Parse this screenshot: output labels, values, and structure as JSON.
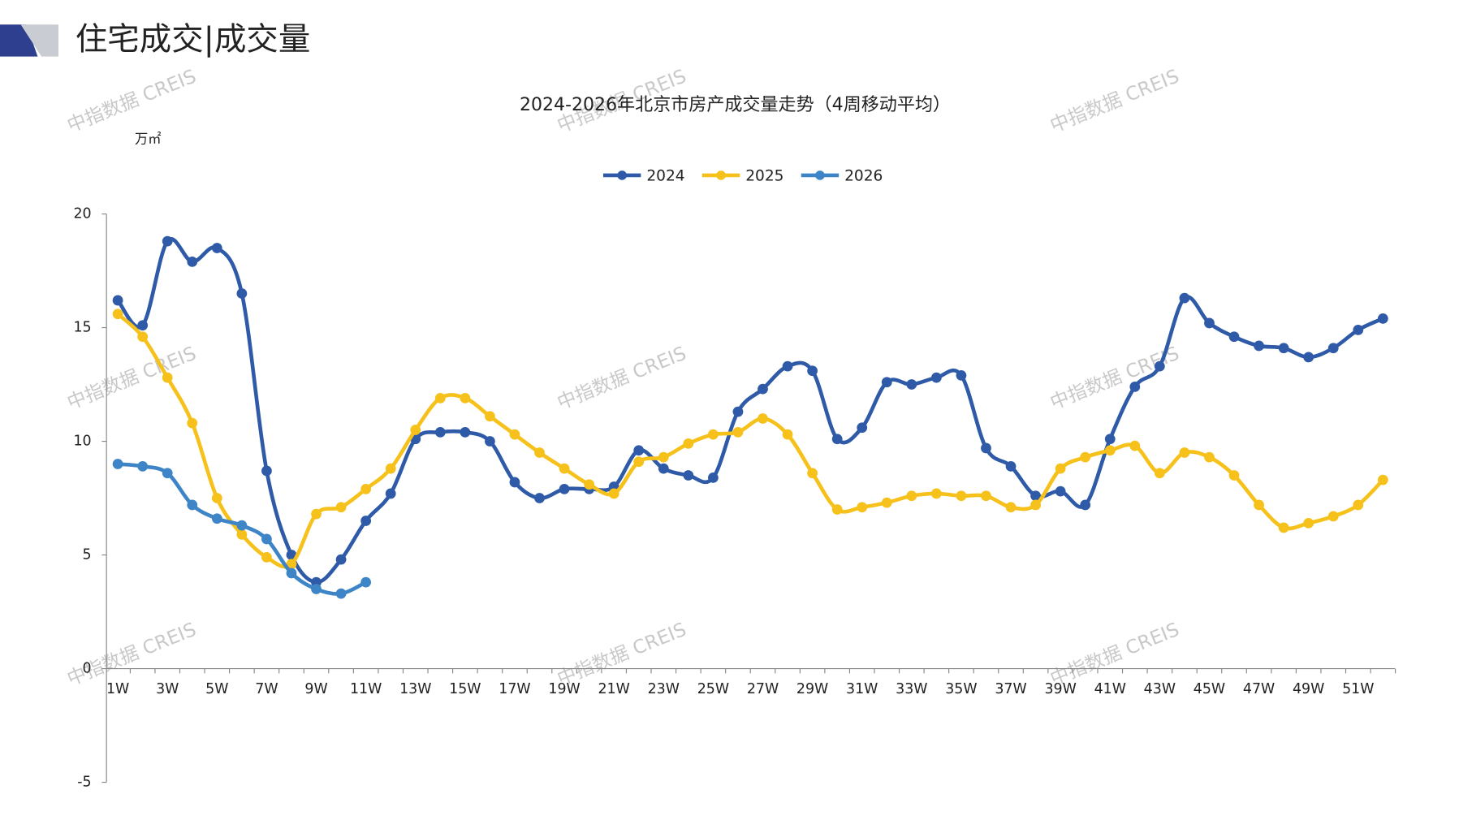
{
  "header": {
    "title": "住宅成交|成交量"
  },
  "watermark": "中指数据 CREIS",
  "chart_data": {
    "type": "line",
    "title": "2024-2026年北京市房产成交量走势（4周移动平均）",
    "y_unit": "万㎡",
    "categories": [
      "1W",
      null,
      "3W",
      null,
      "5W",
      null,
      "7W",
      null,
      "9W",
      null,
      "11W",
      null,
      "13W",
      null,
      "15W",
      null,
      "17W",
      null,
      "19W",
      null,
      "21W",
      null,
      "23W",
      null,
      "25W",
      null,
      "27W",
      null,
      "29W",
      null,
      "31W",
      null,
      "33W",
      null,
      "35W",
      null,
      "37W",
      null,
      "39W",
      null,
      "41W",
      null,
      "43W",
      null,
      "45W",
      null,
      "47W",
      null,
      "49W",
      null,
      "51W",
      null
    ],
    "series": [
      {
        "name": "2024",
        "color": "#2e5aa8",
        "values": [
          16.2,
          15.1,
          18.8,
          17.9,
          18.5,
          16.5,
          8.7,
          5.0,
          3.8,
          4.8,
          6.5,
          7.7,
          10.1,
          10.4,
          10.4,
          10.0,
          8.2,
          7.5,
          7.9,
          7.9,
          8.0,
          9.6,
          8.8,
          8.5,
          8.4,
          11.3,
          12.3,
          13.3,
          13.1,
          10.1,
          10.6,
          12.6,
          12.5,
          12.8,
          12.9,
          9.7,
          8.9,
          7.6,
          7.8,
          7.2,
          10.1,
          12.4,
          13.3,
          16.3,
          15.2,
          14.6,
          14.2,
          14.1,
          13.7,
          14.1,
          14.9,
          15.4
        ]
      },
      {
        "name": "2025",
        "color": "#f5c11a",
        "values": [
          15.6,
          14.6,
          12.8,
          10.8,
          7.5,
          5.9,
          4.9,
          4.6,
          6.8,
          7.1,
          7.9,
          8.8,
          10.5,
          11.9,
          11.9,
          11.1,
          10.3,
          9.5,
          8.8,
          8.1,
          7.7,
          9.1,
          9.3,
          9.9,
          10.3,
          10.4,
          11.0,
          10.3,
          8.6,
          7.0,
          7.1,
          7.3,
          7.6,
          7.7,
          7.6,
          7.6,
          7.1,
          7.2,
          8.8,
          9.3,
          9.6,
          9.8,
          8.6,
          9.5,
          9.3,
          8.5,
          7.2,
          6.2,
          6.4,
          6.7,
          7.2,
          8.3
        ]
      },
      {
        "name": "2026",
        "color": "#3d85c6",
        "values": [
          9.0,
          8.9,
          8.6,
          7.2,
          6.6,
          6.3,
          5.7,
          4.2,
          3.5,
          3.3,
          3.8,
          null,
          null,
          null,
          null,
          null,
          null,
          null,
          null,
          null,
          null,
          null,
          null,
          null,
          null,
          null,
          null,
          null,
          null,
          null,
          null,
          null,
          null,
          null,
          null,
          null,
          null,
          null,
          null,
          null,
          null,
          null,
          null,
          null,
          null,
          null,
          null,
          null,
          null,
          null,
          null,
          null
        ]
      }
    ],
    "ylim": [
      -5,
      20
    ],
    "yticks": [
      -5,
      0,
      5,
      10,
      15,
      20
    ],
    "legend": "top"
  }
}
